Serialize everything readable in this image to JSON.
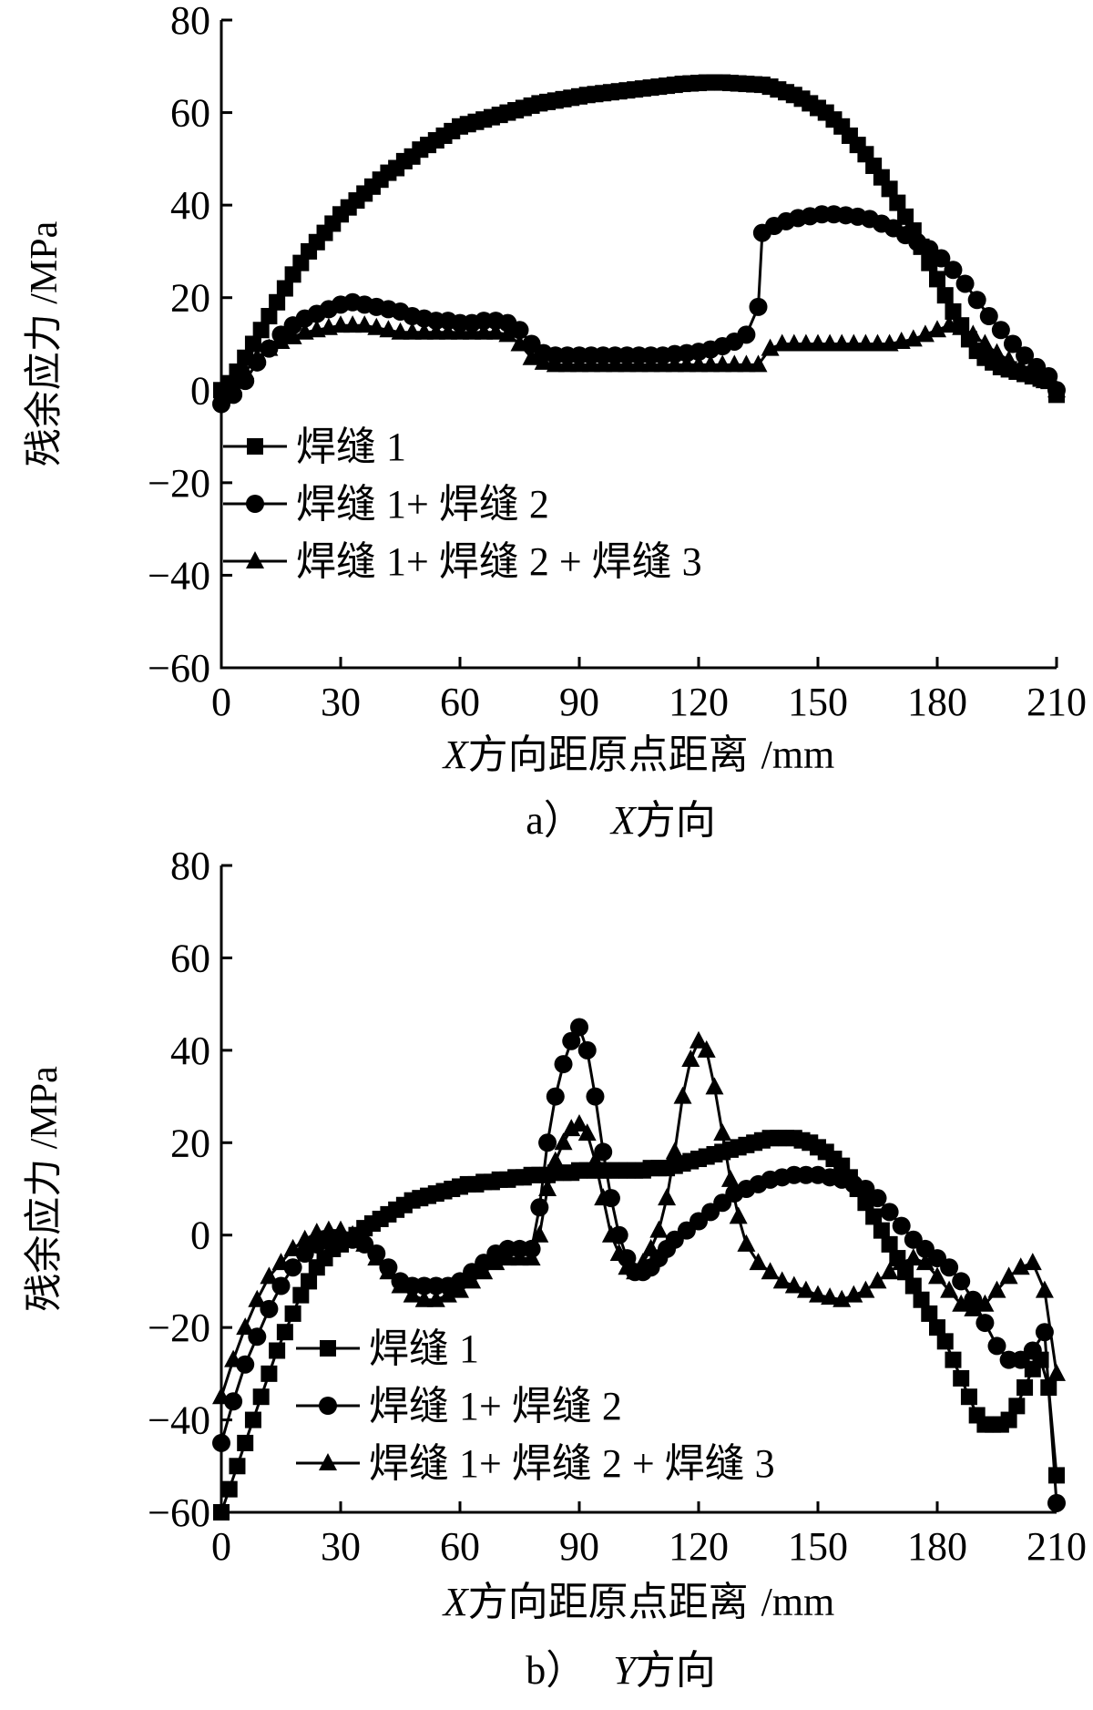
{
  "chart_data": [
    {
      "type": "line",
      "caption_prefix": "a）",
      "caption_axis": "X",
      "caption_rest": "方向",
      "xlabel_italic": "X",
      "xlabel_rest": "方向距原点距离",
      "xlabel_unit": "/mm",
      "ylabel": "残余应力 /MPa",
      "xlim": [
        0,
        210
      ],
      "ylim": [
        -60,
        80
      ],
      "xticks": [
        0,
        30,
        60,
        90,
        120,
        150,
        180,
        210
      ],
      "yticks": [
        -60,
        -40,
        -20,
        0,
        20,
        40,
        60,
        80
      ],
      "xtick_labels": [
        "0",
        "30",
        "60",
        "90",
        "120",
        "150",
        "180",
        "210"
      ],
      "ytick_labels": [
        "−60",
        "−40",
        "−20",
        "0",
        "20",
        "40",
        "60",
        "80"
      ],
      "legend_position": "lower-left",
      "series": [
        {
          "name": "焊缝 1",
          "marker": "square",
          "x": [
            0,
            2,
            4,
            6,
            8,
            10,
            12,
            14,
            16,
            18,
            20,
            22,
            24,
            26,
            28,
            30,
            32,
            34,
            36,
            38,
            40,
            42,
            44,
            46,
            48,
            50,
            52,
            54,
            56,
            58,
            60,
            62,
            64,
            66,
            68,
            70,
            72,
            74,
            76,
            78,
            80,
            82,
            84,
            86,
            88,
            90,
            92,
            94,
            96,
            98,
            100,
            102,
            104,
            106,
            108,
            110,
            112,
            114,
            116,
            118,
            120,
            122,
            124,
            126,
            128,
            130,
            132,
            134,
            136,
            138,
            140,
            142,
            144,
            146,
            148,
            150,
            152,
            154,
            156,
            158,
            160,
            162,
            164,
            166,
            168,
            170,
            172,
            174,
            176,
            178,
            180,
            182,
            184,
            186,
            188,
            190,
            192,
            194,
            196,
            198,
            200,
            202,
            204,
            206,
            208,
            210
          ],
          "y": [
            0,
            1.5,
            4,
            7,
            10,
            13,
            16,
            19,
            22,
            25,
            27.5,
            30,
            32,
            34,
            36,
            38,
            39.5,
            41,
            42.5,
            44,
            45.5,
            47,
            48,
            49.5,
            50.5,
            52,
            53,
            54,
            55,
            56,
            57,
            57.5,
            58,
            58.5,
            59,
            59.5,
            60,
            60.5,
            61,
            61.5,
            62,
            62.3,
            62.6,
            62.9,
            63.2,
            63.5,
            63.8,
            64,
            64.2,
            64.4,
            64.6,
            64.8,
            65,
            65.2,
            65.4,
            65.6,
            65.8,
            66,
            66.2,
            66.3,
            66.4,
            66.5,
            66.5,
            66.5,
            66.4,
            66.3,
            66.2,
            66.1,
            66,
            65.6,
            65,
            64.4,
            63.8,
            63,
            62,
            61,
            60,
            58.5,
            57,
            55,
            53,
            51,
            48.5,
            46,
            43.5,
            40.5,
            37.5,
            34.5,
            31,
            27.5,
            24,
            20.5,
            17,
            14,
            11,
            8.5,
            7,
            6,
            5,
            4.5,
            4,
            3.5,
            3,
            2.5,
            2,
            -1
          ]
        },
        {
          "name": "焊缝 1+ 焊缝 2",
          "marker": "circle",
          "x": [
            0,
            3,
            6,
            9,
            12,
            15,
            18,
            21,
            24,
            27,
            30,
            33,
            36,
            39,
            42,
            45,
            48,
            51,
            54,
            57,
            60,
            63,
            66,
            69,
            72,
            75,
            78,
            81,
            84,
            87,
            90,
            93,
            96,
            99,
            102,
            105,
            108,
            111,
            114,
            117,
            120,
            123,
            126,
            129,
            132,
            135,
            136,
            139,
            142,
            145,
            148,
            151,
            154,
            157,
            160,
            163,
            166,
            169,
            172,
            175,
            178,
            181,
            184,
            187,
            190,
            193,
            196,
            199,
            202,
            205,
            208,
            210
          ],
          "y": [
            -3,
            -1,
            2,
            6,
            9,
            12,
            14,
            15.5,
            16.5,
            17.5,
            18.5,
            19,
            18.5,
            18,
            17.5,
            17,
            16,
            15.5,
            15,
            15,
            14.5,
            14.5,
            15,
            15,
            14.5,
            13,
            10,
            8,
            7.5,
            7.5,
            7.5,
            7.5,
            7.5,
            7.5,
            7.5,
            7.5,
            7.5,
            7.5,
            7.8,
            8,
            8.3,
            8.8,
            9.5,
            10.5,
            12,
            18,
            34,
            35.5,
            36.5,
            37.2,
            37.6,
            38,
            38,
            37.8,
            37.5,
            37,
            36,
            35,
            33.5,
            32,
            30.5,
            28.5,
            26,
            23,
            19.5,
            16,
            13,
            10,
            7.5,
            5,
            3,
            0
          ]
        },
        {
          "name": "焊缝 1+ 焊缝 2 + 焊缝 3",
          "marker": "triangle",
          "x": [
            0,
            3,
            6,
            9,
            12,
            15,
            18,
            21,
            24,
            27,
            30,
            33,
            36,
            39,
            42,
            45,
            48,
            51,
            54,
            57,
            60,
            63,
            66,
            69,
            72,
            75,
            78,
            81,
            84,
            87,
            90,
            93,
            96,
            99,
            102,
            105,
            108,
            111,
            114,
            117,
            120,
            123,
            126,
            129,
            132,
            135,
            138,
            141,
            144,
            147,
            150,
            153,
            156,
            159,
            162,
            165,
            168,
            171,
            174,
            177,
            180,
            183,
            186,
            189,
            192,
            195,
            198,
            201,
            204,
            207,
            210
          ],
          "y": [
            -1,
            1,
            4,
            7,
            9,
            10.5,
            11.5,
            12.5,
            13,
            13.5,
            14,
            14,
            14,
            13.5,
            13,
            12.5,
            12.5,
            12.5,
            12.5,
            12.5,
            12.5,
            12.5,
            12.5,
            12.5,
            12,
            10,
            7,
            6,
            5.5,
            5.5,
            5.5,
            5.5,
            5.5,
            5.5,
            5.5,
            5.5,
            5.5,
            5.5,
            5.5,
            5.5,
            5.5,
            5.5,
            5.5,
            5.5,
            5.5,
            5.5,
            9,
            10,
            10,
            10,
            10,
            10,
            10,
            10,
            10,
            10,
            10,
            10.5,
            11,
            12,
            13,
            14,
            13.5,
            12,
            10,
            8,
            6.5,
            5,
            3.5,
            2,
            0
          ]
        }
      ]
    },
    {
      "type": "line",
      "caption_prefix": "b）",
      "caption_axis": "Y",
      "caption_rest": "方向",
      "xlabel_italic": "X",
      "xlabel_rest": "方向距原点距离",
      "xlabel_unit": "/mm",
      "ylabel": "残余应力 /MPa",
      "xlim": [
        0,
        210
      ],
      "ylim": [
        -60,
        80
      ],
      "xticks": [
        0,
        30,
        60,
        90,
        120,
        150,
        180,
        210
      ],
      "yticks": [
        -60,
        -40,
        -20,
        0,
        20,
        40,
        60,
        80
      ],
      "xtick_labels": [
        "0",
        "30",
        "60",
        "90",
        "120",
        "150",
        "180",
        "210"
      ],
      "ytick_labels": [
        "−60",
        "−40",
        "−20",
        "0",
        "20",
        "40",
        "60",
        "80"
      ],
      "legend_position": "lower-left",
      "series": [
        {
          "name": "焊缝 1",
          "marker": "square",
          "x": [
            0,
            2,
            4,
            6,
            8,
            10,
            12,
            14,
            16,
            18,
            20,
            22,
            24,
            26,
            28,
            30,
            32,
            34,
            36,
            38,
            40,
            42,
            44,
            46,
            48,
            50,
            52,
            54,
            56,
            58,
            60,
            62,
            64,
            66,
            68,
            70,
            72,
            74,
            76,
            78,
            80,
            82,
            84,
            86,
            88,
            90,
            92,
            94,
            96,
            98,
            100,
            102,
            104,
            106,
            108,
            110,
            112,
            114,
            116,
            118,
            120,
            122,
            124,
            126,
            128,
            130,
            132,
            134,
            136,
            138,
            140,
            142,
            144,
            146,
            148,
            150,
            152,
            154,
            156,
            158,
            160,
            162,
            164,
            166,
            168,
            170,
            172,
            174,
            176,
            178,
            180,
            182,
            184,
            186,
            188,
            190,
            192,
            194,
            196,
            198,
            200,
            202,
            204,
            206,
            208,
            210
          ],
          "y": [
            -60,
            -55,
            -50,
            -45,
            -40,
            -35,
            -30,
            -25,
            -21,
            -17,
            -13,
            -10,
            -7,
            -5,
            -3,
            -2,
            -1,
            0,
            1.5,
            2.5,
            3.5,
            4.5,
            5.5,
            6.5,
            7.5,
            8,
            8.5,
            9,
            9.5,
            10,
            10.5,
            11,
            11,
            11.5,
            11.5,
            12,
            12,
            12.5,
            12.5,
            13,
            13,
            13,
            13.5,
            13.5,
            13.5,
            14,
            14,
            14,
            14,
            14,
            14,
            14,
            14,
            14,
            14.5,
            14.5,
            14.5,
            15,
            15.5,
            16,
            16.5,
            17,
            17.5,
            18,
            18.5,
            19,
            19.5,
            20,
            20.5,
            21,
            21,
            21,
            21,
            20.5,
            20,
            19,
            18,
            16.5,
            15,
            12.5,
            10,
            7,
            4,
            1,
            -2,
            -5,
            -8,
            -11,
            -14,
            -17,
            -20,
            -23,
            -27,
            -31,
            -35,
            -39,
            -41,
            -41,
            -41,
            -40,
            -37,
            -33,
            -29,
            -27,
            -33,
            -52
          ]
        },
        {
          "name": "焊缝 1+ 焊缝 2",
          "marker": "circle",
          "x": [
            0,
            3,
            6,
            9,
            12,
            15,
            18,
            21,
            24,
            27,
            30,
            33,
            36,
            39,
            42,
            45,
            48,
            51,
            54,
            57,
            60,
            63,
            66,
            69,
            72,
            75,
            78,
            80,
            82,
            84,
            86,
            88,
            90,
            92,
            94,
            96,
            98,
            100,
            102,
            104,
            106,
            108,
            110,
            112,
            114,
            117,
            120,
            123,
            126,
            129,
            132,
            135,
            138,
            141,
            144,
            147,
            150,
            153,
            156,
            159,
            162,
            165,
            168,
            171,
            174,
            177,
            180,
            183,
            186,
            189,
            192,
            195,
            198,
            201,
            204,
            207,
            210
          ],
          "y": [
            -45,
            -36,
            -28,
            -22,
            -16,
            -11,
            -7,
            -4,
            -2,
            -1,
            -1,
            -1,
            -2,
            -4,
            -7,
            -10,
            -11,
            -11,
            -11,
            -11,
            -10,
            -8,
            -6,
            -4,
            -3,
            -3,
            -3,
            6,
            20,
            30,
            37,
            42,
            45,
            40,
            30,
            18,
            8,
            0,
            -5,
            -8,
            -8,
            -7,
            -5,
            -3,
            -1,
            1,
            3,
            5,
            7,
            9,
            10,
            11,
            12,
            12.5,
            13,
            13,
            13,
            12.5,
            12,
            11,
            10,
            8,
            5,
            2,
            -1,
            -3,
            -5,
            -7,
            -10,
            -14,
            -19,
            -24,
            -27,
            -27,
            -25,
            -21,
            -58
          ]
        },
        {
          "name": "焊缝 1+ 焊缝 2 + 焊缝 3",
          "marker": "triangle",
          "x": [
            0,
            3,
            6,
            9,
            12,
            15,
            18,
            21,
            24,
            27,
            30,
            33,
            36,
            39,
            42,
            45,
            48,
            51,
            54,
            57,
            60,
            63,
            66,
            69,
            72,
            75,
            78,
            80,
            82,
            84,
            86,
            88,
            90,
            92,
            94,
            96,
            98,
            100,
            102,
            104,
            106,
            108,
            110,
            112,
            114,
            116,
            118,
            120,
            122,
            124,
            126,
            128,
            130,
            132,
            135,
            138,
            141,
            144,
            147,
            150,
            153,
            156,
            159,
            162,
            165,
            168,
            171,
            174,
            177,
            180,
            183,
            186,
            189,
            192,
            195,
            198,
            201,
            204,
            207,
            210
          ],
          "y": [
            -35,
            -27,
            -20,
            -14,
            -9,
            -6,
            -3,
            -1,
            0.5,
            1,
            1,
            0,
            -2,
            -5,
            -8,
            -11,
            -13,
            -14,
            -14,
            -13,
            -12,
            -10,
            -8,
            -6,
            -5,
            -5,
            -5,
            0,
            10,
            16,
            20,
            23,
            24,
            22,
            16,
            8,
            0,
            -4,
            -7,
            -8,
            -6,
            -3,
            1,
            8,
            18,
            30,
            38,
            42,
            40,
            32,
            22,
            12,
            4,
            -2,
            -6,
            -8,
            -10,
            -11,
            -12,
            -13,
            -13.5,
            -14,
            -13,
            -12,
            -10,
            -8,
            -6,
            -5,
            -6,
            -9,
            -12,
            -15,
            -16,
            -15,
            -12,
            -9,
            -7,
            -6,
            -12,
            -30
          ]
        }
      ]
    }
  ]
}
